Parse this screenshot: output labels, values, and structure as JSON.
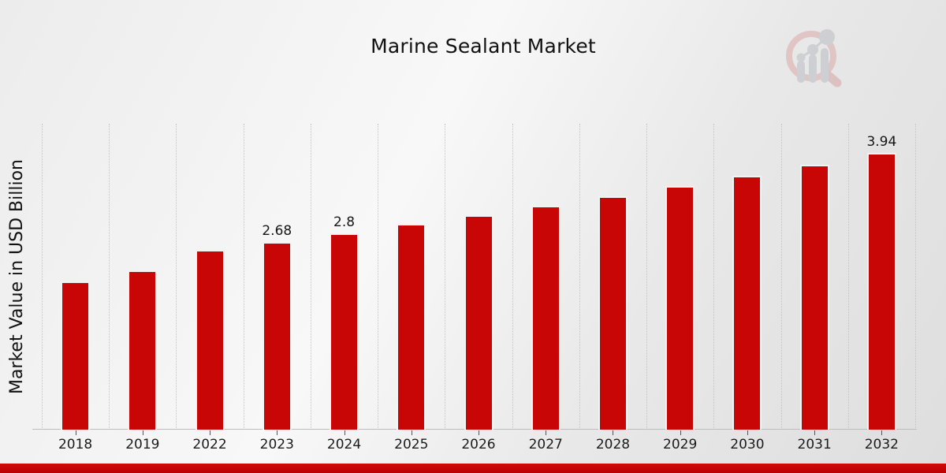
{
  "page": {
    "background_gradient": [
      "#ececec",
      "#f8f8f8",
      "#dedede"
    ]
  },
  "header": {
    "title": "Marine Sealant Market"
  },
  "watermark": {
    "icon": "magnifier-bar-chart-logo",
    "ring_color": "#dcaaaa",
    "bars_color": "#b9bdc4"
  },
  "chart_data": {
    "type": "bar",
    "title": "Marine Sealant Market",
    "xlabel": "",
    "ylabel": "Market Value in USD Billion",
    "categories": [
      "2018",
      "2019",
      "2022",
      "2023",
      "2024",
      "2025",
      "2026",
      "2027",
      "2028",
      "2029",
      "2030",
      "2031",
      "2032"
    ],
    "values": [
      2.11,
      2.27,
      2.56,
      2.68,
      2.8,
      2.93,
      3.06,
      3.19,
      3.33,
      3.47,
      3.62,
      3.78,
      3.94
    ],
    "value_labels": [
      "",
      "",
      "",
      "2.68",
      "2.8",
      "",
      "",
      "",
      "",
      "",
      "",
      "",
      "3.94"
    ],
    "bar_color": "#c90606",
    "bar_edge_color": "#f3f3f3",
    "ylim": [
      0,
      4.36
    ],
    "grid": "vertical dotted lines at category boundaries",
    "legend": "none"
  },
  "footer": {
    "accent_bar_color": "#cc0303"
  }
}
